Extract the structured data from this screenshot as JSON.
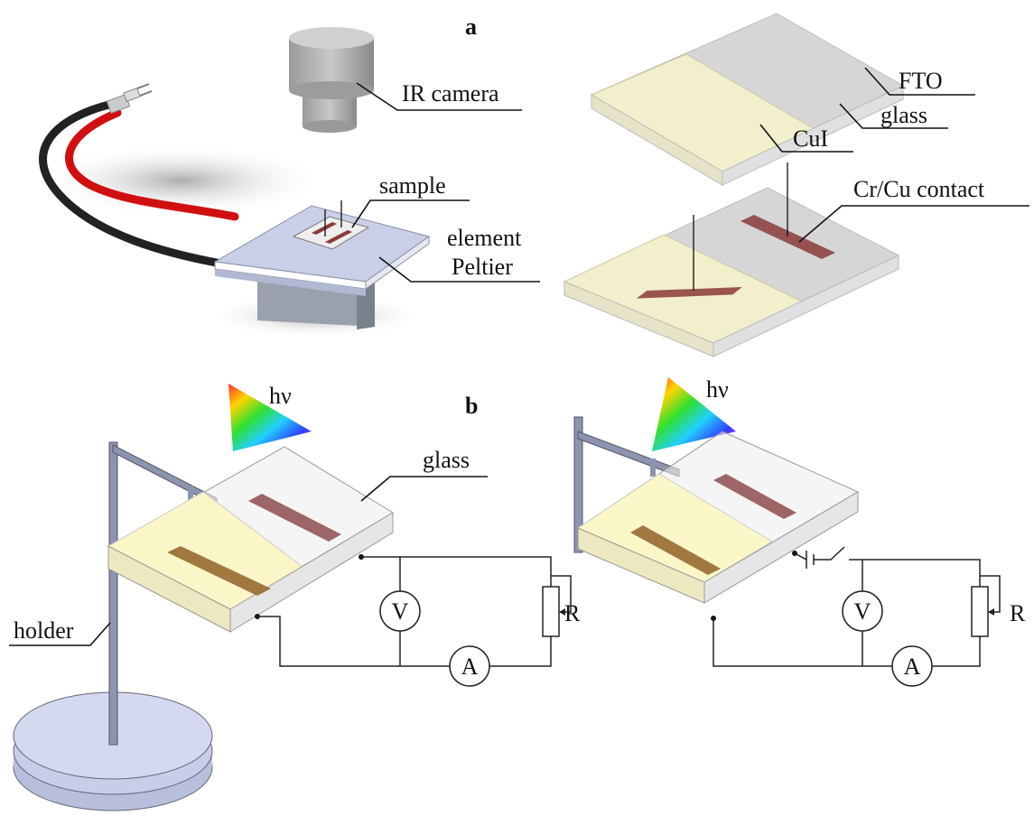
{
  "panel_a": {
    "label": "a",
    "ir_camera": "IR camera",
    "sample": "sample",
    "element": "element",
    "peltier": "Peltier",
    "fto": "FTO",
    "glass": "glass",
    "cui": "CuI",
    "contact": "Cr/Cu contact"
  },
  "panel_b": {
    "label": "b",
    "left": {
      "light": "hν",
      "glass": "glass",
      "holder": "holder",
      "voltmeter": "V",
      "ammeter": "A",
      "resistor": "R"
    },
    "right": {
      "light": "hν",
      "voltmeter": "V",
      "ammeter": "A",
      "resistor": "R"
    }
  }
}
